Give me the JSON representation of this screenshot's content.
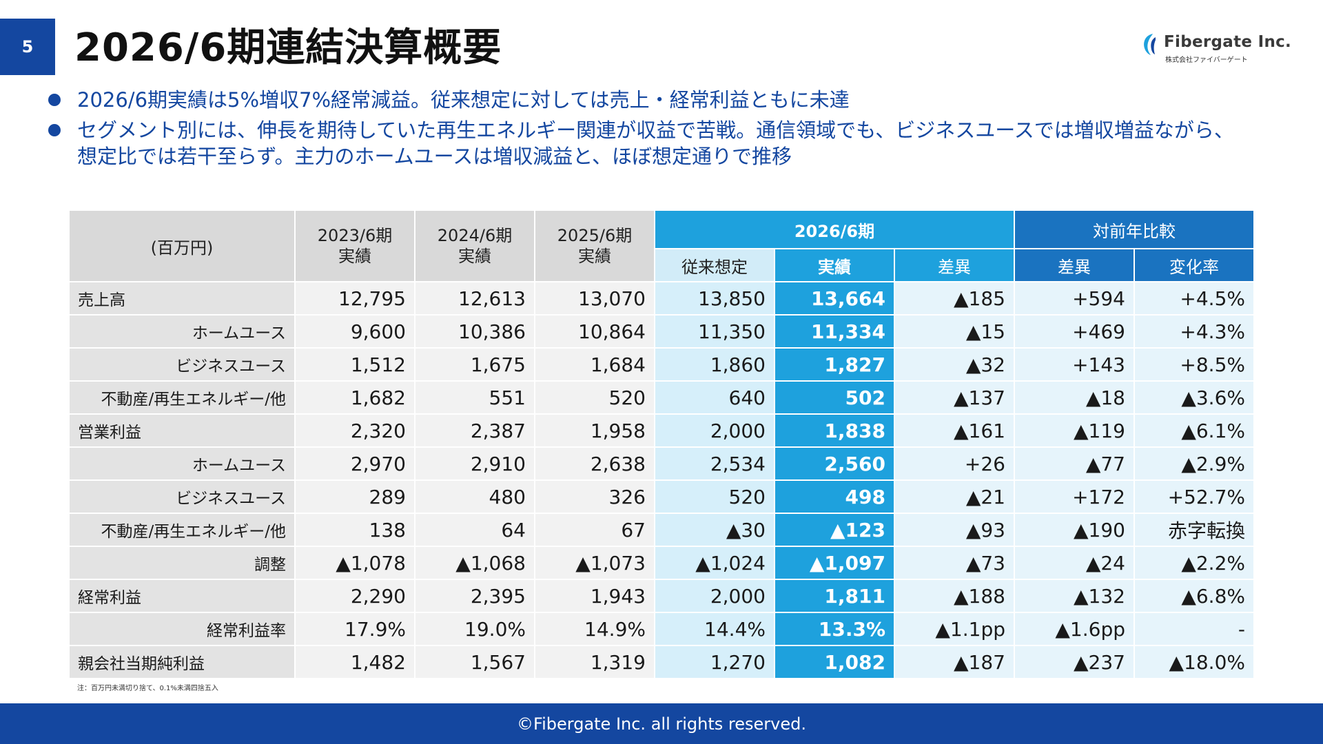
{
  "slide": {
    "page_number": "5",
    "title": "2026/6期連結決算概要"
  },
  "logo": {
    "name": "Fibergate Inc.",
    "sub": "株式会社ファイバーゲート",
    "icon": "fibergate-logo-mark"
  },
  "bullets": [
    "2026/6期実績は5%増収7%経常減益。従来想定に対しては売上・経常利益ともに未達",
    "セグメント別には、伸長を期待していた再生エネルギー関連が収益で苦戦。通信領域でも、ビジネスユースでは増収増益ながら、想定比では若干至らず。主力のホームユースは増収減益と、ほぼ想定通りで推移"
  ],
  "table": {
    "unit_label": "(百万円)",
    "past_headers": [
      {
        "line1": "2023/6期",
        "line2": "実績"
      },
      {
        "line1": "2024/6期",
        "line2": "実績"
      },
      {
        "line1": "2025/6期",
        "line2": "実績"
      }
    ],
    "group_current": "2026/6期",
    "group_yoy": "対前年比較",
    "sub_headers": {
      "plan": "従来想定",
      "actual": "実績",
      "diff": "差異",
      "yoy_diff": "差異",
      "yoy_rate": "変化率"
    },
    "rows": [
      {
        "label": "売上高",
        "indent": false,
        "values": [
          "12,795",
          "12,613",
          "13,070",
          "13,850",
          "13,664",
          "▲185",
          "+594",
          "+4.5%"
        ]
      },
      {
        "label": "ホームユース",
        "indent": true,
        "values": [
          "9,600",
          "10,386",
          "10,864",
          "11,350",
          "11,334",
          "▲15",
          "+469",
          "+4.3%"
        ]
      },
      {
        "label": "ビジネスユース",
        "indent": true,
        "values": [
          "1,512",
          "1,675",
          "1,684",
          "1,860",
          "1,827",
          "▲32",
          "+143",
          "+8.5%"
        ]
      },
      {
        "label": "不動産/再生エネルギー/他",
        "indent": true,
        "values": [
          "1,682",
          "551",
          "520",
          "640",
          "502",
          "▲137",
          "▲18",
          "▲3.6%"
        ]
      },
      {
        "label": "営業利益",
        "indent": false,
        "values": [
          "2,320",
          "2,387",
          "1,958",
          "2,000",
          "1,838",
          "▲161",
          "▲119",
          "▲6.1%"
        ]
      },
      {
        "label": "ホームユース",
        "indent": true,
        "values": [
          "2,970",
          "2,910",
          "2,638",
          "2,534",
          "2,560",
          "+26",
          "▲77",
          "▲2.9%"
        ]
      },
      {
        "label": "ビジネスユース",
        "indent": true,
        "values": [
          "289",
          "480",
          "326",
          "520",
          "498",
          "▲21",
          "+172",
          "+52.7%"
        ]
      },
      {
        "label": "不動産/再生エネルギー/他",
        "indent": true,
        "values": [
          "138",
          "64",
          "67",
          "▲30",
          "▲123",
          "▲93",
          "▲190",
          "赤字転換"
        ]
      },
      {
        "label": "調整",
        "indent": true,
        "values": [
          "▲1,078",
          "▲1,068",
          "▲1,073",
          "▲1,024",
          "▲1,097",
          "▲73",
          "▲24",
          "▲2.2%"
        ]
      },
      {
        "label": "経常利益",
        "indent": false,
        "values": [
          "2,290",
          "2,395",
          "1,943",
          "2,000",
          "1,811",
          "▲188",
          "▲132",
          "▲6.8%"
        ]
      },
      {
        "label": "経常利益率",
        "indent": true,
        "values": [
          "17.9%",
          "19.0%",
          "14.9%",
          "14.4%",
          "13.3%",
          "▲1.1pp",
          "▲1.6pp",
          "-"
        ]
      },
      {
        "label": "親会社当期純利益",
        "indent": false,
        "values": [
          "1,482",
          "1,567",
          "1,319",
          "1,270",
          "1,082",
          "▲187",
          "▲237",
          "▲18.0%"
        ]
      }
    ]
  },
  "note": "注：百万円未満切り捨て、0.1%未満四捨五入",
  "footer": "©Fibergate Inc. all rights reserved.",
  "colors": {
    "brand_navy": "#1447a0",
    "actual_blue": "#1ea1dd",
    "yoy_blue": "#1a73c0",
    "plan_light": "#d6effa",
    "label_gray": "#e3e3e3"
  }
}
